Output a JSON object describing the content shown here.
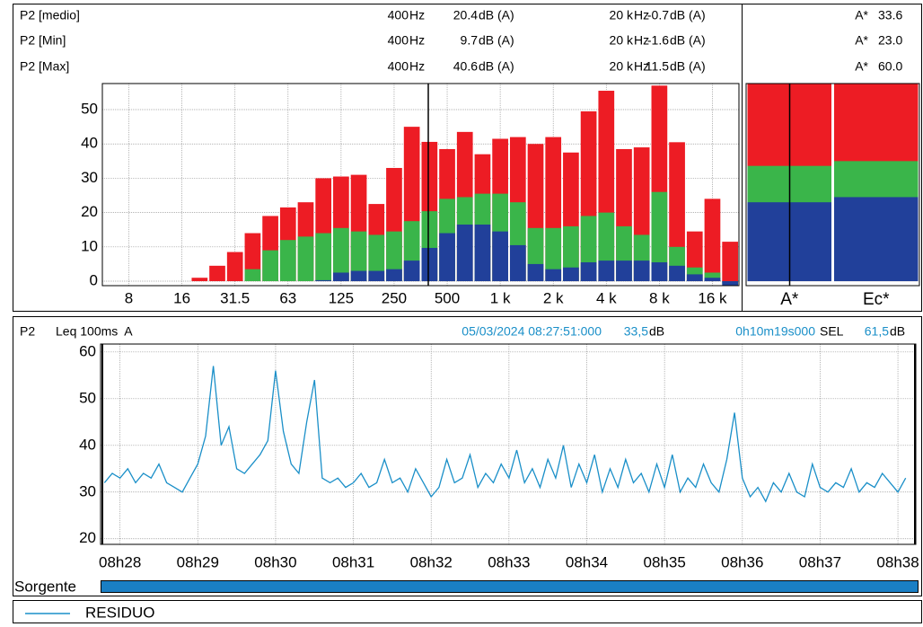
{
  "readouts": [
    {
      "f1": "400",
      "u1": "Hz",
      "v1": "20.4",
      "unit1": "dB (A)",
      "f2": "20 k",
      "u2": "Hz",
      "v2": "-0.7",
      "unit2": "dB (A)",
      "band": "A*",
      "bv": "33.6"
    },
    {
      "f1": "400",
      "u1": "Hz",
      "v1": "9.7",
      "unit1": "dB (A)",
      "f2": "20 k",
      "u2": "Hz",
      "v2": "-1.6",
      "unit2": "dB (A)",
      "band": "A*",
      "bv": "23.0"
    },
    {
      "f1": "400",
      "u1": "Hz",
      "v1": "40.6",
      "unit1": "dB (A)",
      "f2": "20 k",
      "u2": "Hz",
      "v2": "11.5",
      "unit2": "dB (A)",
      "band": "A*",
      "bv": "60.0"
    }
  ],
  "time_header": {
    "channel": "P2",
    "mode": "Leq 100ms  A",
    "cursor": "05/03/2024 08:27:51:000",
    "level": "33,5",
    "level_unit": "dB",
    "duration": "0h10m19s000",
    "sel": "SEL",
    "sel_value": "61,5",
    "sel_unit": "dB"
  },
  "source": {
    "label": "Sorgente"
  },
  "chart_data": [
    {
      "type": "bar",
      "categories": [
        null,
        "8",
        null,
        null,
        "16",
        null,
        null,
        "31.5",
        null,
        null,
        "63",
        null,
        null,
        "125",
        null,
        null,
        "250",
        null,
        null,
        "500",
        null,
        null,
        "1 k",
        null,
        null,
        "2 k",
        null,
        null,
        "4 k",
        null,
        null,
        "8 k",
        null,
        null,
        "16 k",
        null
      ],
      "series": [
        {
          "name": "P2 [medio]",
          "color": "#3ab54a",
          "values": [
            0,
            0,
            0,
            0,
            0,
            0,
            0,
            0,
            3.5,
            9,
            12,
            13,
            14,
            15.5,
            14.5,
            13.5,
            14.5,
            17.5,
            20.4,
            24,
            24.5,
            25.5,
            25.5,
            23,
            15.5,
            15.5,
            16,
            19,
            20,
            16,
            13.5,
            26,
            10,
            4,
            2.5,
            -0.7
          ]
        },
        {
          "name": "P2 [Min]",
          "color": "#21409a",
          "values": [
            0,
            0,
            0,
            0,
            0,
            0,
            0,
            0,
            0,
            0,
            0,
            0,
            0.3,
            2.5,
            3,
            3,
            3.5,
            6,
            9.7,
            14,
            16.5,
            16.5,
            14.5,
            10.5,
            5,
            3.5,
            4,
            5.5,
            6,
            6,
            6,
            5.5,
            4.5,
            2,
            1,
            -1.6
          ]
        },
        {
          "name": "P2 [Max]",
          "color": "#ed1c24",
          "values": [
            0,
            0,
            0,
            0,
            0,
            1,
            4.5,
            8.5,
            14,
            19,
            21.5,
            23,
            30,
            30.5,
            31,
            22.5,
            33,
            45,
            40.6,
            38.5,
            43.5,
            37,
            41.5,
            42,
            40,
            42,
            37.5,
            49.5,
            55.5,
            38.5,
            39,
            57,
            40.5,
            14.5,
            24,
            11.5
          ]
        }
      ],
      "ylim": [
        -1.3,
        57.6
      ],
      "yticks": [
        0,
        10,
        20,
        30,
        40,
        50
      ],
      "grid": true
    },
    {
      "type": "bar",
      "categories": [
        "A*",
        "Ec*"
      ],
      "series": [
        {
          "color": "#3ab54a",
          "values": [
            33.6,
            35
          ]
        },
        {
          "color": "#21409a",
          "values": [
            23,
            24.5
          ]
        },
        {
          "color": "#ed1c24",
          "values": [
            60,
            60
          ]
        }
      ],
      "ylim": [
        -1.3,
        57.6
      ],
      "grid": false
    },
    {
      "type": "line",
      "x": [
        507.8,
        507.9,
        508,
        508.1,
        508.2,
        508.3,
        508.4,
        508.5,
        508.6,
        508.7,
        508.8,
        508.9,
        509,
        509.1,
        509.2,
        509.3,
        509.4,
        509.5,
        509.6,
        509.7,
        509.8,
        509.9,
        510,
        510.1,
        510.2,
        510.3,
        510.4,
        510.5,
        510.6,
        510.7,
        510.8,
        510.9,
        511,
        511.1,
        511.2,
        511.3,
        511.4,
        511.5,
        511.6,
        511.7,
        511.8,
        511.9,
        512,
        512.1,
        512.2,
        512.3,
        512.4,
        512.5,
        512.6,
        512.7,
        512.8,
        512.9,
        513,
        513.1,
        513.2,
        513.3,
        513.4,
        513.5,
        513.6,
        513.7,
        513.8,
        513.9,
        514,
        514.1,
        514.2,
        514.3,
        514.4,
        514.5,
        514.6,
        514.7,
        514.8,
        514.9,
        515,
        515.1,
        515.2,
        515.3,
        515.4,
        515.5,
        515.6,
        515.7,
        515.8,
        515.9,
        516,
        516.1,
        516.2,
        516.3,
        516.4,
        516.5,
        516.6,
        516.7,
        516.8,
        516.9,
        517,
        517.1,
        517.2,
        517.3,
        517.4,
        517.5,
        517.6,
        517.7,
        517.8,
        517.9,
        518,
        518.1
      ],
      "series": [
        {
          "name": "RESIDUO",
          "color": "#1a8fc8",
          "values": [
            32,
            34,
            33,
            35,
            32,
            34,
            33,
            36,
            32,
            31,
            30,
            33,
            36,
            42,
            57,
            40,
            44,
            35,
            34,
            36,
            38,
            41,
            56,
            43,
            36,
            34,
            45,
            54,
            33,
            32,
            33,
            31,
            32,
            34,
            31,
            32,
            37,
            32,
            33,
            30,
            35,
            32,
            29,
            31,
            37,
            32,
            33,
            38,
            31,
            34,
            32,
            36,
            33,
            39,
            32,
            35,
            31,
            37,
            33,
            40,
            31,
            36,
            32,
            38,
            30,
            35,
            31,
            37,
            32,
            34,
            30,
            36,
            31,
            38,
            30,
            33,
            31,
            36,
            32,
            30,
            37,
            47,
            33,
            29,
            31,
            28,
            32,
            30,
            34,
            30,
            29,
            36,
            31,
            30,
            32,
            31,
            35,
            30,
            32,
            31,
            34,
            32,
            30,
            33
          ]
        }
      ],
      "xlim": [
        507.75,
        518.23
      ],
      "xticks": [
        {
          "value": 508,
          "label": "08h28"
        },
        {
          "value": 509,
          "label": "08h29"
        },
        {
          "value": 510,
          "label": "08h30"
        },
        {
          "value": 511,
          "label": "08h31"
        },
        {
          "value": 512,
          "label": "08h32"
        },
        {
          "value": 513,
          "label": "08h33"
        },
        {
          "value": 514,
          "label": "08h34"
        },
        {
          "value": 515,
          "label": "08h35"
        },
        {
          "value": 516,
          "label": "08h36"
        },
        {
          "value": 517,
          "label": "08h37"
        },
        {
          "value": 518,
          "label": "08h38"
        }
      ],
      "ylim": [
        18.8,
        61.7
      ],
      "yticks": [
        20,
        30,
        40,
        50,
        60
      ],
      "grid": true
    }
  ]
}
